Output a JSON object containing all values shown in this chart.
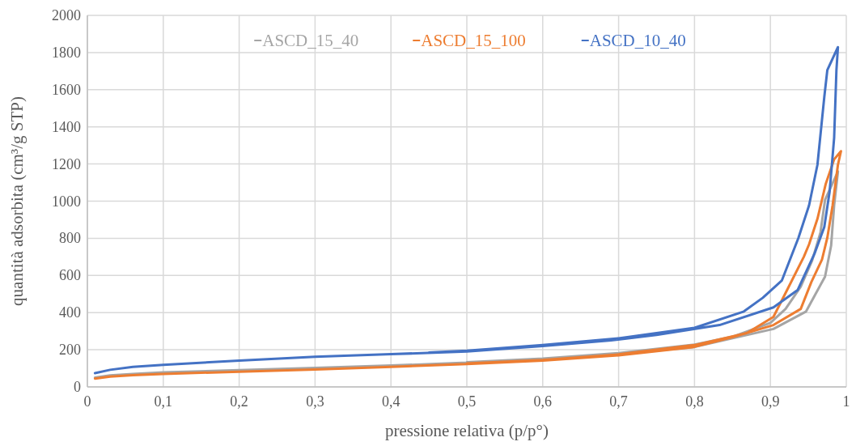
{
  "chart_data": {
    "type": "line",
    "xlabel": "pressione relativa (p/p°)",
    "ylabel": "quantità adsorbita (cm³/g STP)",
    "xlim": [
      0,
      1
    ],
    "ylim": [
      0,
      2000
    ],
    "xticks": [
      0,
      {
        "value": 0.1,
        "label": "0,1"
      },
      {
        "value": 0.2,
        "label": "0,2"
      },
      {
        "value": 0.3,
        "label": "0,3"
      },
      {
        "value": 0.4,
        "label": "0,4"
      },
      {
        "value": 0.5,
        "label": "0,5"
      },
      {
        "value": 0.6,
        "label": "0,6"
      },
      {
        "value": 0.7,
        "label": "0,7"
      },
      {
        "value": 0.8,
        "label": "0,8"
      },
      {
        "value": 0.9,
        "label": "0,9"
      },
      1
    ],
    "yticks": [
      0,
      200,
      400,
      600,
      800,
      1000,
      1200,
      1400,
      1600,
      1800,
      2000
    ],
    "grid": true,
    "legend": "top",
    "line_style": "solid",
    "marker": "none",
    "series": [
      {
        "name": "ASCD_15_40",
        "color": "#a5a5a5",
        "x": [
          0.01,
          0.03,
          0.06,
          0.1,
          0.2,
          0.3,
          0.4,
          0.5,
          0.6,
          0.7,
          0.8,
          0.904,
          0.947,
          0.972,
          0.98,
          0.984,
          0.989,
          0.972,
          0.966,
          0.955,
          0.94,
          0.92,
          0.9,
          0.85,
          0.8,
          0.7,
          0.6,
          0.5
        ],
        "values": [
          50,
          62,
          70,
          78,
          90,
          102,
          115,
          131,
          150,
          178,
          215,
          312,
          406,
          594,
          760,
          978,
          1160,
          1007,
          832,
          680,
          540,
          420,
          345,
          270,
          228,
          182,
          152,
          133
        ]
      },
      {
        "name": "ASCD_15_100",
        "color": "#ed7d31",
        "x": [
          0.01,
          0.03,
          0.06,
          0.1,
          0.2,
          0.3,
          0.4,
          0.5,
          0.6,
          0.7,
          0.797,
          0.85,
          0.904,
          0.94,
          0.954,
          0.968,
          0.975,
          0.982,
          0.989,
          0.993,
          0.984,
          0.973,
          0.962,
          0.951,
          0.944,
          0.922,
          0.904,
          0.869,
          0.8,
          0.7,
          0.6,
          0.5
        ],
        "values": [
          45,
          56,
          63,
          70,
          82,
          94,
          108,
          123,
          142,
          170,
          213,
          268,
          333,
          420,
          565,
          686,
          803,
          978,
          1196,
          1269,
          1225,
          1094,
          905,
          768,
          700,
          522,
          377,
          290,
          225,
          175,
          145,
          126
        ]
      },
      {
        "name": "ASCD_10_40",
        "color": "#4472c4",
        "x": [
          0.01,
          0.03,
          0.06,
          0.1,
          0.2,
          0.3,
          0.4,
          0.5,
          0.6,
          0.69,
          0.75,
          0.833,
          0.904,
          0.936,
          0.958,
          0.971,
          0.978,
          0.984,
          0.987,
          0.989,
          0.975,
          0.971,
          0.962,
          0.951,
          0.937,
          0.915,
          0.89,
          0.865,
          0.8,
          0.7,
          0.6,
          0.5,
          0.45
        ],
        "values": [
          74,
          92,
          108,
          119,
          142,
          162,
          176,
          191,
          220,
          250,
          280,
          333,
          428,
          522,
          716,
          861,
          1050,
          1342,
          1705,
          1829,
          1705,
          1560,
          1196,
          978,
          803,
          572,
          480,
          406,
          318,
          262,
          225,
          195,
          185
        ]
      }
    ]
  }
}
